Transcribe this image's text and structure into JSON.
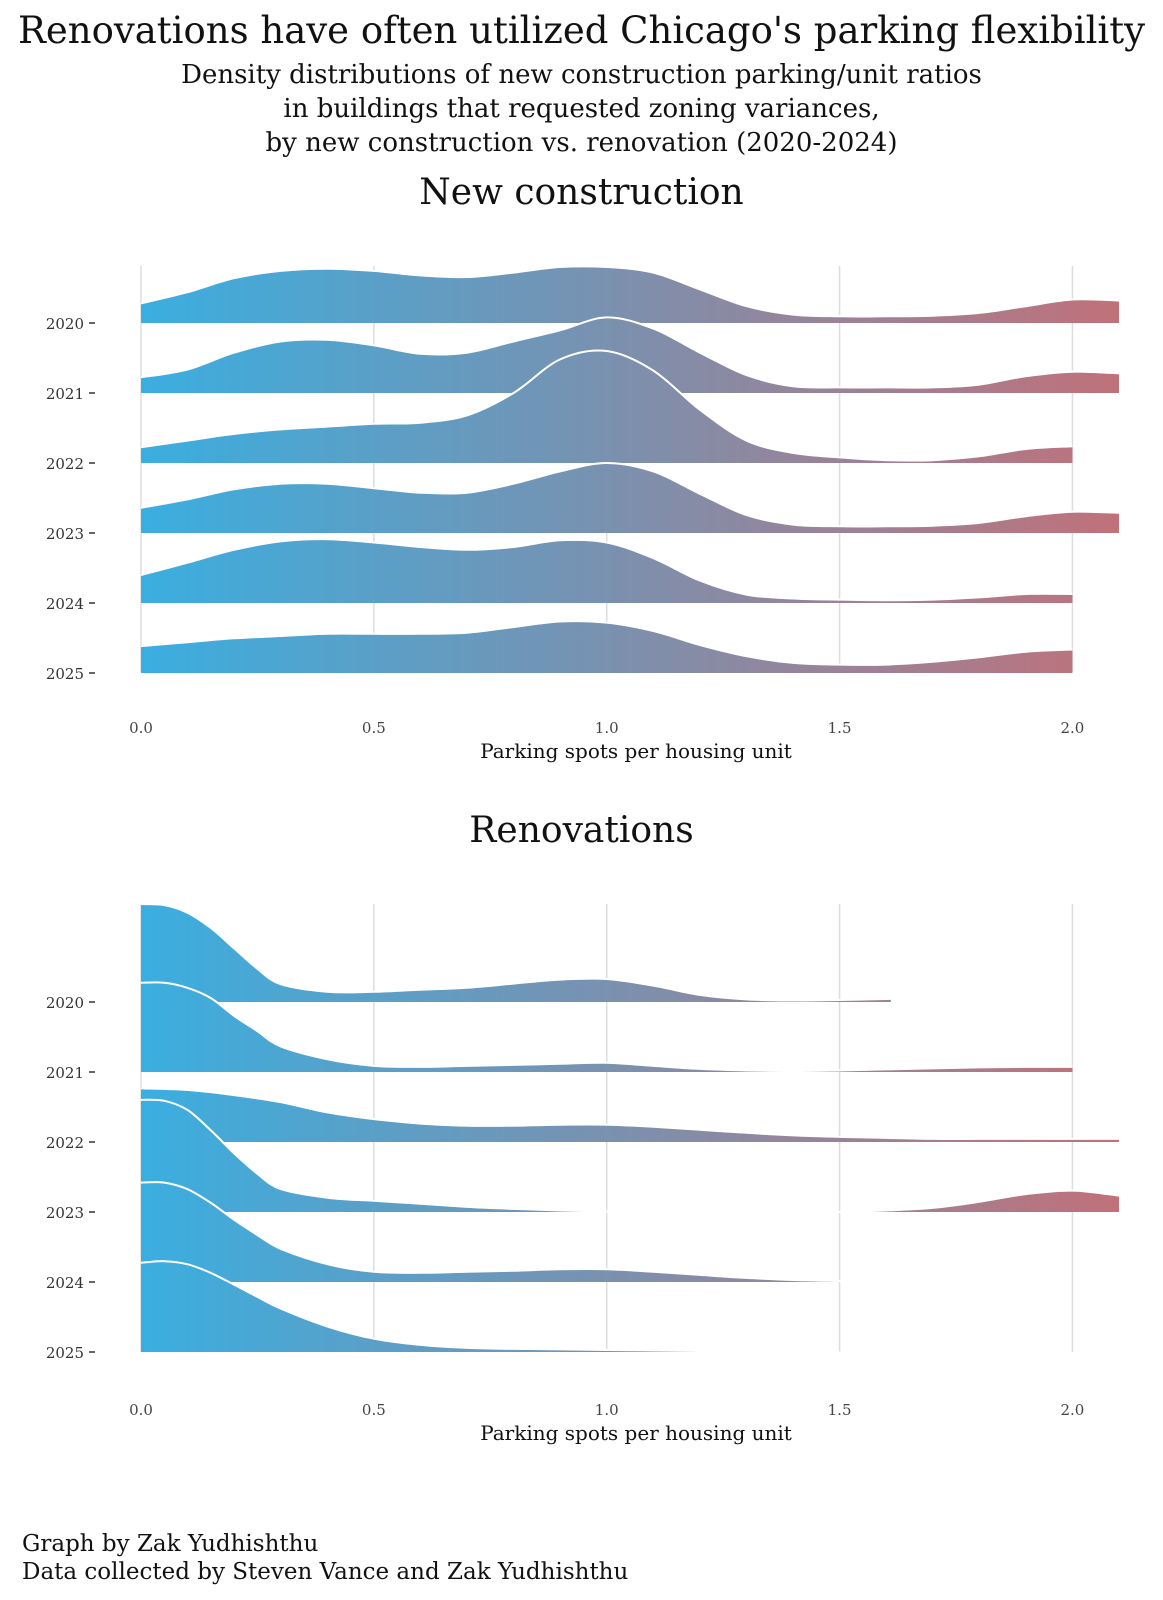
{
  "title": "Renovations have often utilized Chicago's parking flexibility",
  "subtitle_lines": [
    "Density distributions of new construction parking/unit ratios",
    "in buildings that requested zoning variances,",
    "by new construction vs. renovation (2020-2024)"
  ],
  "colors": {
    "low": "#3aaee0",
    "high": "#c0717a",
    "grid": "#dddddd",
    "outline": "#ffffff",
    "text": "#111111"
  },
  "caption": {
    "line1": "Graph by Zak Yudhishthu",
    "line2": "Data collected by Steven Vance and Zak Yudhishthu"
  },
  "chart_data": [
    {
      "type": "ridgeline",
      "title": "New construction",
      "xlabel": "Parking spots per housing unit",
      "xlim": [
        0.0,
        2.1
      ],
      "xticks": [
        "0.0",
        "0.5",
        "1.0",
        "1.5",
        "2.0"
      ],
      "tick_values": [
        0.0,
        0.5,
        1.0,
        1.5,
        2.0
      ],
      "categories": [
        "2020",
        "2021",
        "2022",
        "2023",
        "2024",
        "2025"
      ],
      "series": [
        {
          "name": "2020",
          "x": [
            0,
            0.1,
            0.2,
            0.3,
            0.4,
            0.5,
            0.6,
            0.7,
            0.8,
            0.9,
            1.0,
            1.1,
            1.2,
            1.3,
            1.4,
            1.5,
            1.6,
            1.7,
            1.8,
            1.9,
            2.0,
            2.1
          ],
          "density": [
            0.35,
            0.55,
            0.8,
            0.93,
            0.97,
            0.93,
            0.85,
            0.82,
            0.9,
            1.0,
            1.0,
            0.9,
            0.6,
            0.3,
            0.15,
            0.12,
            0.12,
            0.13,
            0.18,
            0.3,
            0.42,
            0.4
          ]
        },
        {
          "name": "2021",
          "x": [
            0,
            0.1,
            0.2,
            0.3,
            0.4,
            0.5,
            0.6,
            0.7,
            0.8,
            0.9,
            1.0,
            1.1,
            1.2,
            1.3,
            1.4,
            1.5,
            1.6,
            1.7,
            1.8,
            1.9,
            2.0,
            2.1
          ],
          "density": [
            0.28,
            0.42,
            0.72,
            0.92,
            0.95,
            0.85,
            0.7,
            0.72,
            0.92,
            1.12,
            1.35,
            1.15,
            0.72,
            0.32,
            0.12,
            0.1,
            0.1,
            0.1,
            0.15,
            0.3,
            0.38,
            0.35
          ]
        },
        {
          "name": "2022",
          "x": [
            0,
            0.1,
            0.2,
            0.3,
            0.4,
            0.5,
            0.6,
            0.7,
            0.8,
            0.9,
            1.0,
            1.1,
            1.2,
            1.3,
            1.4,
            1.5,
            1.6,
            1.7,
            1.8,
            1.9,
            2.0
          ],
          "density": [
            0.28,
            0.4,
            0.52,
            0.6,
            0.65,
            0.7,
            0.72,
            0.85,
            1.25,
            1.85,
            2.0,
            1.65,
            0.95,
            0.4,
            0.18,
            0.1,
            0.05,
            0.05,
            0.12,
            0.25,
            0.3
          ]
        },
        {
          "name": "2023",
          "x": [
            0,
            0.1,
            0.2,
            0.3,
            0.4,
            0.5,
            0.6,
            0.7,
            0.8,
            0.9,
            1.0,
            1.1,
            1.2,
            1.3,
            1.4,
            1.5,
            1.6,
            1.7,
            1.8,
            1.9,
            2.0,
            2.1
          ],
          "density": [
            0.45,
            0.6,
            0.78,
            0.88,
            0.88,
            0.8,
            0.72,
            0.72,
            0.88,
            1.1,
            1.25,
            1.1,
            0.7,
            0.32,
            0.15,
            0.12,
            0.12,
            0.13,
            0.18,
            0.3,
            0.38,
            0.36
          ]
        },
        {
          "name": "2024",
          "x": [
            0,
            0.1,
            0.2,
            0.3,
            0.4,
            0.5,
            0.6,
            0.7,
            0.8,
            0.9,
            1.0,
            1.1,
            1.2,
            1.3,
            1.4,
            1.5,
            1.6,
            1.7,
            1.8,
            1.9,
            2.0
          ],
          "density": [
            0.5,
            0.72,
            0.95,
            1.1,
            1.14,
            1.08,
            1.0,
            0.95,
            1.0,
            1.12,
            1.08,
            0.8,
            0.4,
            0.15,
            0.08,
            0.06,
            0.05,
            0.06,
            0.1,
            0.16,
            0.16
          ]
        },
        {
          "name": "2025",
          "x": [
            0,
            0.1,
            0.2,
            0.3,
            0.4,
            0.5,
            0.6,
            0.7,
            0.8,
            0.9,
            1.0,
            1.1,
            1.2,
            1.3,
            1.4,
            1.5,
            1.6,
            1.7,
            1.8,
            1.9,
            2.0
          ],
          "density": [
            0.48,
            0.55,
            0.62,
            0.66,
            0.7,
            0.7,
            0.7,
            0.72,
            0.82,
            0.92,
            0.9,
            0.75,
            0.5,
            0.3,
            0.18,
            0.15,
            0.15,
            0.2,
            0.28,
            0.38,
            0.42
          ]
        }
      ]
    },
    {
      "type": "ridgeline",
      "title": "Renovations",
      "xlabel": "Parking spots per housing unit",
      "xlim": [
        0.0,
        2.1
      ],
      "xticks": [
        "0.0",
        "0.5",
        "1.0",
        "1.5",
        "2.0"
      ],
      "tick_values": [
        0.0,
        0.5,
        1.0,
        1.5,
        2.0
      ],
      "categories": [
        "2020",
        "2021",
        "2022",
        "2023",
        "2024",
        "2025"
      ],
      "series": [
        {
          "name": "2020",
          "x": [
            0,
            0.05,
            0.1,
            0.15,
            0.2,
            0.25,
            0.3,
            0.4,
            0.5,
            0.6,
            0.7,
            0.8,
            0.9,
            1.0,
            1.1,
            1.2,
            1.3,
            1.4,
            1.5,
            1.61
          ],
          "density": [
            1.92,
            1.9,
            1.75,
            1.45,
            1.05,
            0.65,
            0.35,
            0.2,
            0.2,
            0.24,
            0.28,
            0.36,
            0.44,
            0.45,
            0.32,
            0.14,
            0.05,
            0.03,
            0.04,
            0.06
          ]
        },
        {
          "name": "2021",
          "x": [
            0,
            0.05,
            0.1,
            0.15,
            0.2,
            0.25,
            0.3,
            0.4,
            0.5,
            0.6,
            0.7,
            0.8,
            0.9,
            1.0,
            1.1,
            1.2,
            1.3,
            1.4,
            1.5,
            1.6,
            1.7,
            1.8,
            1.9,
            2.0
          ],
          "density": [
            1.75,
            1.75,
            1.65,
            1.45,
            1.1,
            0.8,
            0.5,
            0.25,
            0.12,
            0.1,
            0.12,
            0.14,
            0.16,
            0.18,
            0.12,
            0.06,
            0.03,
            0.02,
            0.03,
            0.05,
            0.07,
            0.09,
            0.1,
            0.1
          ]
        },
        {
          "name": "2022",
          "x": [
            0,
            0.1,
            0.2,
            0.3,
            0.4,
            0.5,
            0.6,
            0.7,
            0.8,
            0.9,
            1.0,
            1.1,
            1.2,
            1.3,
            1.4,
            1.5,
            1.6,
            1.7,
            1.8,
            1.9,
            2.0,
            2.1
          ],
          "density": [
            1.05,
            1.02,
            0.92,
            0.78,
            0.58,
            0.45,
            0.36,
            0.32,
            0.32,
            0.34,
            0.34,
            0.3,
            0.24,
            0.18,
            0.13,
            0.1,
            0.08,
            0.06,
            0.06,
            0.06,
            0.06,
            0.06
          ]
        },
        {
          "name": "2023",
          "x": [
            0,
            0.05,
            0.1,
            0.15,
            0.2,
            0.25,
            0.3,
            0.4,
            0.5,
            0.6,
            0.7,
            0.8,
            0.9,
            1.0,
            1.1,
            1.2,
            1.3,
            1.4,
            1.5,
            1.6,
            1.7,
            1.8,
            1.9,
            2.0,
            2.1
          ],
          "density": [
            2.2,
            2.18,
            2.0,
            1.6,
            1.15,
            0.75,
            0.45,
            0.28,
            0.22,
            0.16,
            0.1,
            0.06,
            0.03,
            0.01,
            0.0,
            0.0,
            0.0,
            0.0,
            0.0,
            0.03,
            0.08,
            0.2,
            0.35,
            0.42,
            0.32
          ]
        },
        {
          "name": "2024",
          "x": [
            0,
            0.05,
            0.1,
            0.15,
            0.2,
            0.25,
            0.3,
            0.4,
            0.5,
            0.6,
            0.7,
            0.8,
            0.9,
            1.0,
            1.1,
            1.2,
            1.3,
            1.4,
            1.5,
            1.6,
            1.67
          ],
          "density": [
            1.95,
            1.95,
            1.82,
            1.55,
            1.22,
            0.92,
            0.65,
            0.35,
            0.2,
            0.18,
            0.2,
            0.22,
            0.25,
            0.25,
            0.2,
            0.14,
            0.08,
            0.04,
            0.02,
            0.01,
            0.0
          ]
        },
        {
          "name": "2025",
          "x": [
            0,
            0.05,
            0.1,
            0.15,
            0.2,
            0.25,
            0.3,
            0.4,
            0.5,
            0.6,
            0.7,
            0.8,
            0.9,
            1.0,
            1.1,
            1.2,
            1.3,
            1.4,
            1.5
          ],
          "density": [
            1.75,
            1.78,
            1.72,
            1.55,
            1.32,
            1.08,
            0.85,
            0.5,
            0.26,
            0.14,
            0.08,
            0.06,
            0.05,
            0.04,
            0.03,
            0.02,
            0.01,
            0.005,
            0.0
          ]
        }
      ]
    }
  ]
}
